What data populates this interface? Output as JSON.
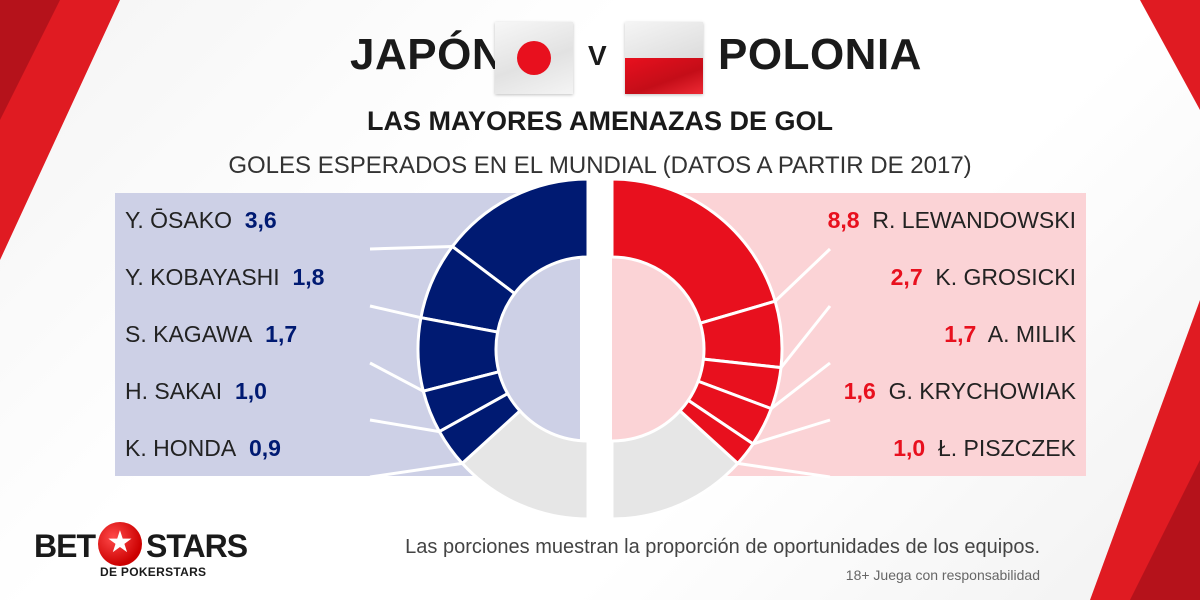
{
  "header": {
    "team_left": "JAPÓN",
    "vs": "V",
    "team_right": "POLONIA",
    "subtitle": "LAS MAYORES AMENAZAS DE GOL",
    "subtitle2": "GOLES ESPERADOS EN EL MUNDIAL (DATOS A PARTIR DE 2017)"
  },
  "footer": {
    "note": "Las porciones muestran la proporción de oportunidades de los equipos.",
    "responsible": "18+ Juega con responsabilidad",
    "logo_bet": "BET",
    "logo_stars": "STARS",
    "logo_sub": "DE POKERSTARS"
  },
  "colors": {
    "japan_dark": "#001a72",
    "poland_red": "#e8101e",
    "remainder_grey": "#e6e6e6",
    "japan_panel": "#cdd0e6",
    "poland_panel": "#fbd3d6"
  },
  "chart_data": {
    "type": "pie",
    "series": [
      {
        "name": "JAPÓN",
        "players": [
          {
            "name": "Y. ŌSAKO",
            "value": 3.6,
            "label": "3,6"
          },
          {
            "name": "Y. KOBAYASHI",
            "value": 1.8,
            "label": "1,8"
          },
          {
            "name": "S. KAGAWA",
            "value": 1.7,
            "label": "1,7"
          },
          {
            "name": "H. SAKAI",
            "value": 1.0,
            "label": "1,0"
          },
          {
            "name": "K. HONDA",
            "value": 0.9,
            "label": "0,9"
          }
        ],
        "share_of_semicircle": 0.735
      },
      {
        "name": "POLONIA",
        "players": [
          {
            "name": "R. LEWANDOWSKI",
            "value": 8.8,
            "label": "8,8"
          },
          {
            "name": "K. GROSICKI",
            "value": 2.7,
            "label": "2,7"
          },
          {
            "name": "A. MILIK",
            "value": 1.7,
            "label": "1,7"
          },
          {
            "name": "G. KRYCHOWIAK",
            "value": 1.6,
            "label": "1,6"
          },
          {
            "name": "Ł. PISZCZEK",
            "value": 1.0,
            "label": "1,0"
          }
        ],
        "share_of_semicircle": 0.735
      }
    ]
  }
}
